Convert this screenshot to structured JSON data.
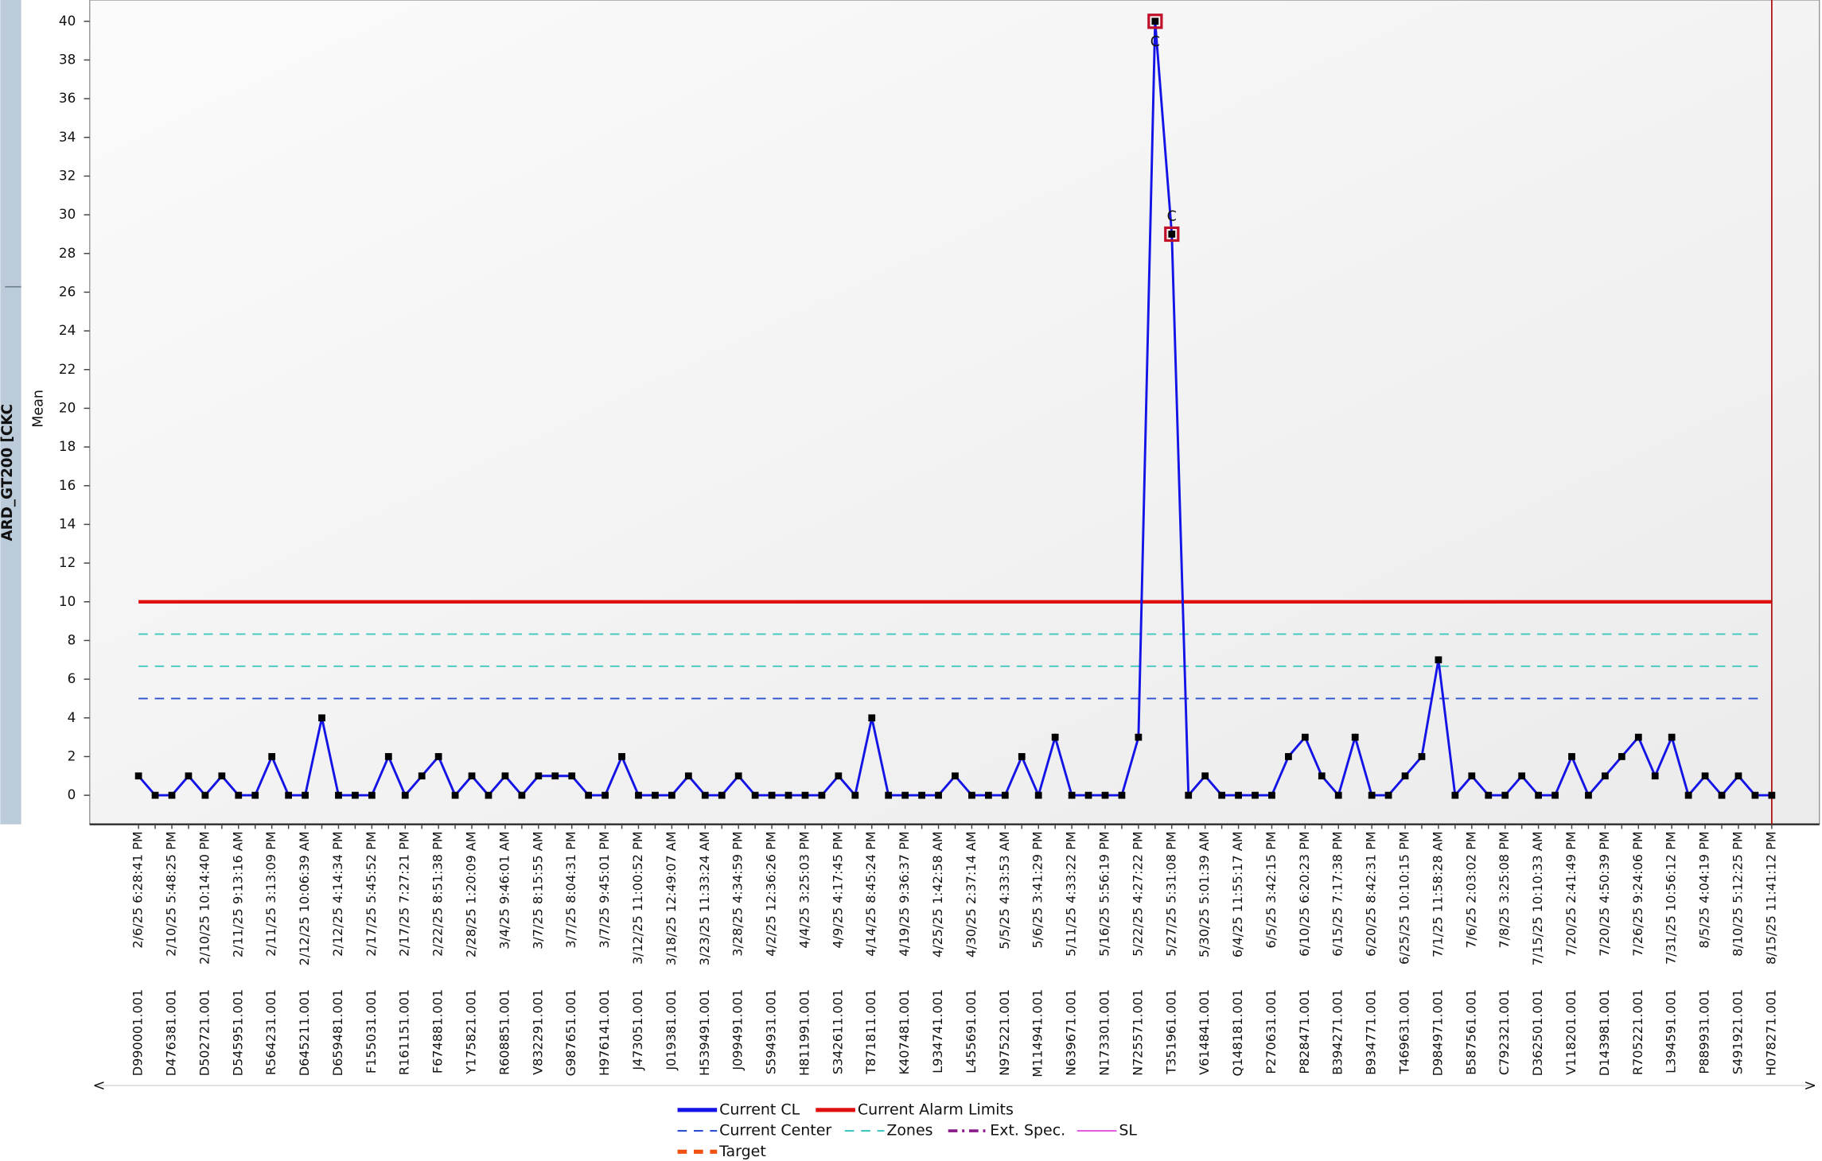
{
  "chart_data": {
    "type": "line",
    "side_label": "ARD_GT200 [CKC",
    "y_label": "Mean",
    "ylim": [
      -1.5,
      41.1
    ],
    "yticks": [
      0,
      2,
      4,
      6,
      8,
      10,
      12,
      14,
      16,
      18,
      20,
      22,
      24,
      26,
      28,
      30,
      32,
      34,
      36,
      38,
      40
    ],
    "categories": [
      "2/6/25 6:28:41 PM",
      null,
      "2/10/25 5:48:25 PM",
      null,
      "2/10/25 10:14:40 PM",
      null,
      "2/11/25 9:13:16 AM",
      null,
      "2/11/25 3:13:09 PM",
      null,
      "2/12/25 10:06:39 AM",
      null,
      "2/12/25 4:14:34 PM",
      null,
      "2/17/25 5:45:52 PM",
      null,
      "2/17/25 7:27:21 PM",
      null,
      "2/22/25 8:51:38 PM",
      null,
      "2/28/25 1:20:09 AM",
      null,
      "3/4/25 9:46:01 AM",
      null,
      "3/7/25 8:15:55 AM",
      null,
      "3/7/25 8:04:31 PM",
      null,
      "3/7/25 9:45:01 PM",
      null,
      "3/12/25 11:00:52 PM",
      null,
      "3/18/25 12:49:07 AM",
      null,
      "3/23/25 11:33:24 AM",
      null,
      "3/28/25 4:34:59 PM",
      null,
      "4/2/25 12:36:26 PM",
      null,
      "4/4/25 3:25:03 PM",
      null,
      "4/9/25 4:17:45 PM",
      null,
      "4/14/25 8:45:24 PM",
      null,
      "4/19/25 9:36:37 PM",
      null,
      "4/25/25 1:42:58 AM",
      null,
      "4/30/25 2:37:14 AM",
      null,
      "5/5/25 4:33:53 AM",
      null,
      "5/6/25 3:41:29 PM",
      null,
      "5/11/25 4:33:22 PM",
      null,
      "5/16/25 5:56:19 PM",
      null,
      "5/22/25 4:27:22 PM",
      null,
      "5/27/25 5:31:08 PM",
      null,
      "5/30/25 5:01:39 AM",
      null,
      "6/4/25 11:55:17 AM",
      null,
      "6/5/25 3:42:15 PM",
      null,
      "6/10/25 6:20:23 PM",
      null,
      "6/15/25 7:17:38 PM",
      null,
      "6/20/25 8:42:31 PM",
      null,
      "6/25/25 10:10:15 PM",
      null,
      "7/1/25 11:58:28 AM",
      null,
      "7/6/25 2:03:02 PM",
      null,
      "7/8/25 3:25:08 PM",
      null,
      "7/15/25 10:10:33 AM",
      null,
      "7/20/25 2:41:49 PM",
      null,
      "7/20/25 4:50:39 PM",
      null,
      "7/26/25 9:24:06 PM",
      null,
      "7/31/25 10:56:12 PM",
      null,
      "8/5/25 4:04:19 PM",
      null,
      "8/10/25 5:12:25 PM",
      null,
      "8/15/25 11:41:12 PM"
    ],
    "sample_ids": [
      "D990001.001",
      null,
      "D476381.001",
      null,
      "D502721.001",
      null,
      "D545951.001",
      null,
      "R564231.001",
      null,
      "D645211.001",
      null,
      "D659481.001",
      null,
      "F155031.001",
      null,
      "R161151.001",
      null,
      "F674881.001",
      null,
      "Y175821.001",
      null,
      "R608851.001",
      null,
      "V832291.001",
      null,
      "G987651.001",
      null,
      "H976141.001",
      null,
      "J473051.001",
      null,
      "J019381.001",
      null,
      "H539491.001",
      null,
      "J099491.001",
      null,
      "S594931.001",
      null,
      "H811991.001",
      null,
      "S342611.001",
      null,
      "T871811.001",
      null,
      "K407481.001",
      null,
      "L934741.001",
      null,
      "L455691.001",
      null,
      "N975221.001",
      null,
      "M114941.001",
      null,
      "N639671.001",
      null,
      "N173301.001",
      null,
      "N725571.001",
      null,
      "T351961.001",
      null,
      "V614841.001",
      null,
      "Q148181.001",
      null,
      "P270631.001",
      null,
      "P828471.001",
      null,
      "B394271.001",
      null,
      "B934771.001",
      null,
      "T469631.001",
      null,
      "D984971.001",
      null,
      "B587561.001",
      null,
      "C792321.001",
      null,
      "D362501.001",
      null,
      "V118201.001",
      null,
      "D143981.001",
      null,
      "R705221.001",
      null,
      "L394591.001",
      null,
      "P889931.001",
      null,
      "S491921.001",
      null,
      "H078271.001"
    ],
    "series": [
      {
        "name": "Current CL",
        "color": "#1414e6",
        "values": [
          1,
          0,
          0,
          1,
          0,
          1,
          0,
          0,
          2,
          0,
          0,
          4,
          0,
          0,
          0,
          2,
          0,
          1,
          2,
          0,
          1,
          0,
          1,
          0,
          1,
          1,
          1,
          0,
          0,
          2,
          0,
          0,
          0,
          1,
          0,
          0,
          1,
          0,
          0,
          0,
          0,
          0,
          1,
          0,
          4,
          0,
          0,
          0,
          0,
          1,
          0,
          0,
          0,
          2,
          0,
          3,
          0,
          0,
          0,
          0,
          3,
          40,
          29,
          0,
          1,
          0,
          0,
          0,
          0,
          2,
          3,
          1,
          0,
          3,
          0,
          0,
          1,
          2,
          7,
          0,
          1,
          0,
          0,
          1,
          0,
          0,
          2,
          0,
          1,
          2,
          3,
          1,
          3,
          0,
          1,
          0,
          1,
          0,
          0
        ]
      }
    ],
    "flags": [
      {
        "index": 61,
        "text": "C"
      },
      {
        "index": 62,
        "text": "C"
      }
    ],
    "reference_lines": [
      {
        "name": "Current Alarm Limits",
        "color": "#e01010",
        "dash": "solid",
        "values": [
          10
        ]
      },
      {
        "name": "Current Center",
        "color": "#2a4fd0",
        "dash": "dashed",
        "values": [
          5
        ]
      },
      {
        "name": "Zones",
        "color": "#40c8c0",
        "dash": "dashed",
        "values": [
          8.33,
          6.67
        ]
      }
    ],
    "legend_only": [
      {
        "name": "Ext. Spec.",
        "color": "#8a1a8a",
        "dash": "dashdot"
      },
      {
        "name": "SL",
        "color": "#e060e0",
        "dash": "solid"
      },
      {
        "name": "Target",
        "color": "#f05010",
        "dash": "dashed"
      }
    ]
  }
}
